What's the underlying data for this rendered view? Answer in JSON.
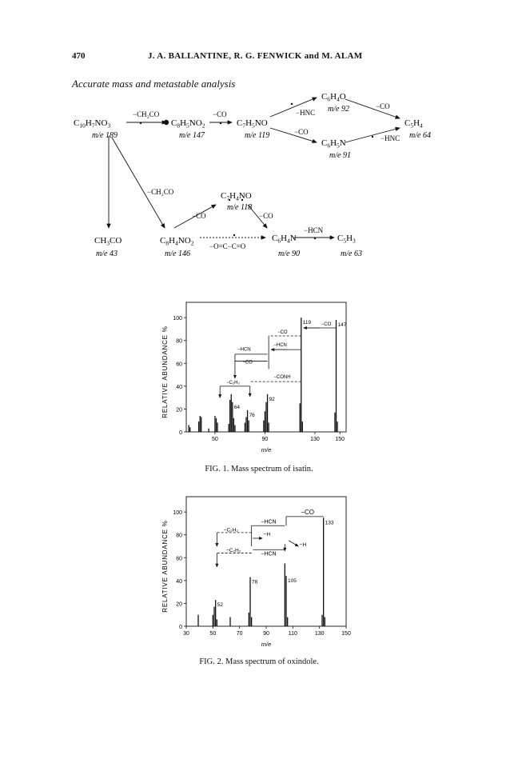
{
  "header": {
    "page_number": "470",
    "authors": "J. A. BALLANTINE, R. G. FENWICK and M. ALAM"
  },
  "section_heading": "Accurate mass and metastable analysis",
  "scheme": {
    "nodes": {
      "c10": {
        "formula": [
          "C",
          "10",
          "H",
          "7",
          "NO",
          "3"
        ],
        "mass": "m/e 189"
      },
      "c8no2": {
        "formula": [
          "C",
          "8",
          "H",
          "5",
          "NO",
          "2"
        ],
        "mass": "m/e 147"
      },
      "c7no": {
        "formula": [
          "C",
          "7",
          "H",
          "5",
          "NO",
          ""
        ],
        "mass": "m/e 119"
      },
      "c6o": {
        "formula": [
          "C",
          "6",
          "H",
          "4",
          "O",
          ""
        ],
        "mass": "m/e 92"
      },
      "c6n": {
        "formula": [
          "C",
          "6",
          "H",
          "5",
          "N",
          ""
        ],
        "mass": "m/e 91"
      },
      "c5": {
        "formula": [
          "C",
          "5",
          "H",
          "4",
          "",
          ""
        ],
        "mass": "m/e 64"
      },
      "ch3co": {
        "formula": [
          "CH",
          "3",
          "CO",
          "",
          "",
          ""
        ],
        "mass": "m/e 43"
      },
      "c8no2b": {
        "formula": [
          "C",
          "8",
          "H",
          "4",
          "NO",
          "2"
        ],
        "mass": "m/e 146"
      },
      "c7no_b": {
        "formula": [
          "C",
          "7",
          "H",
          "4",
          "NO",
          ""
        ],
        "mass": "m/e 118"
      },
      "c6n_b": {
        "formula": [
          "C",
          "6",
          "H",
          "4",
          "N",
          ""
        ],
        "mass": "m/e 90"
      },
      "c5b": {
        "formula": [
          "C",
          "5",
          "H",
          "3",
          "",
          ""
        ],
        "mass": "m/e 63"
      }
    },
    "labels": {
      "minus_ch2co": "−CH₂CO",
      "minus_co": "−CO",
      "minus_hnc": "−HNC",
      "minus_hcn": "−HCN",
      "minus_occo": "−O=C−C=O"
    }
  },
  "fig1": {
    "caption": "FIG. 1. Mass spectrum of isatin.",
    "chart_data": {
      "type": "bar",
      "ylabel": "RELATIVE ABUNDANCE %",
      "xlabel": "m/e",
      "xlim": [
        27,
        155
      ],
      "ylim": [
        0,
        105
      ],
      "xticks": [
        50,
        90,
        130,
        150
      ],
      "yticks": [
        0,
        20,
        40,
        60,
        80,
        100
      ],
      "bars": [
        [
          29,
          6
        ],
        [
          30,
          4
        ],
        [
          37,
          9
        ],
        [
          38,
          14
        ],
        [
          39,
          13
        ],
        [
          45,
          3
        ],
        [
          50,
          14
        ],
        [
          51,
          12
        ],
        [
          52,
          8
        ],
        [
          61,
          7
        ],
        [
          62,
          28
        ],
        [
          63,
          33
        ],
        [
          64,
          26
        ],
        [
          65,
          12
        ],
        [
          66,
          6
        ],
        [
          74,
          8
        ],
        [
          75,
          13
        ],
        [
          76,
          19
        ],
        [
          77,
          10
        ],
        [
          89,
          10
        ],
        [
          90,
          18
        ],
        [
          91,
          26
        ],
        [
          92,
          33
        ],
        [
          93,
          8
        ],
        [
          118,
          25
        ],
        [
          119,
          100
        ],
        [
          120,
          9
        ],
        [
          146,
          17
        ],
        [
          147,
          98
        ],
        [
          148,
          9
        ]
      ],
      "peak_labels": [
        {
          "x": 64,
          "label": "64"
        },
        {
          "x": 76,
          "label": "76"
        },
        {
          "x": 92,
          "label": "92"
        },
        {
          "x": 119,
          "label": "119"
        },
        {
          "x": 147,
          "label": "147"
        }
      ],
      "annotations": [
        "−CO",
        "−CO",
        "−HCN",
        "−HCN",
        "−CO",
        "−CONH",
        "−C₂H₂"
      ]
    }
  },
  "fig2": {
    "caption": "FIG. 2. Mass spectrum of oxindole.",
    "chart_data": {
      "type": "bar",
      "ylabel": "RELATIVE ABUNDANCE %",
      "xlabel": "m/e",
      "xlim": [
        30,
        150
      ],
      "ylim": [
        0,
        105
      ],
      "xticks": [
        30,
        50,
        70,
        90,
        110,
        130,
        150
      ],
      "yticks": [
        0,
        20,
        40,
        60,
        80,
        100
      ],
      "bars": [
        [
          39,
          10
        ],
        [
          50,
          10
        ],
        [
          51,
          17
        ],
        [
          52,
          23
        ],
        [
          53,
          6
        ],
        [
          63,
          8
        ],
        [
          77,
          12
        ],
        [
          78,
          43
        ],
        [
          79,
          8
        ],
        [
          104,
          55
        ],
        [
          105,
          44
        ],
        [
          106,
          8
        ],
        [
          132,
          10
        ],
        [
          133,
          95
        ],
        [
          134,
          8
        ]
      ],
      "peak_labels": [
        {
          "x": 52,
          "label": "52"
        },
        {
          "x": 78,
          "label": "78"
        },
        {
          "x": 105,
          "label": "105"
        },
        {
          "x": 133,
          "label": "133"
        }
      ],
      "annotations": [
        "−CO",
        "−HCN",
        "−C₂H₂",
        "−H",
        "−H",
        "−C₂H₂",
        "−HCN"
      ]
    }
  }
}
